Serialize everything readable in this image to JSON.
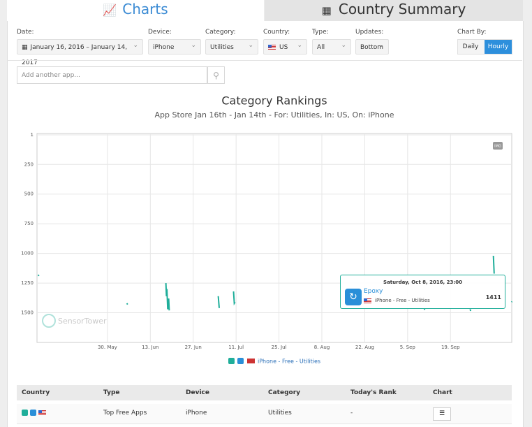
{
  "tabs": [
    "Charts",
    "Country Summary"
  ],
  "filters": {
    "date": {
      "label": "Date:",
      "value": "January 16, 2016 – January 14, 2017"
    },
    "device": {
      "label": "Device:",
      "value": "iPhone"
    },
    "category": {
      "label": "Category:",
      "value": "Utilities"
    },
    "country": {
      "label": "Country:",
      "value": "US"
    },
    "type": {
      "label": "Type:",
      "value": "All"
    },
    "updates": {
      "label": "Updates:",
      "value": "Bottom"
    },
    "chart_by": {
      "label": "Chart By:",
      "options": [
        "Daily",
        "Hourly"
      ]
    }
  },
  "search_placeholder": "Add another app...",
  "chart_data": {
    "type": "line",
    "title": "Category Rankings",
    "subtitle": "App Store Jan 16th - Jan 14th - For: Utilities, In: US, On: iPhone",
    "x": [
      "2016-05-07T10:00",
      "2016-05-07T14:00",
      "2016-05-20T00:00",
      "2016-06-05T08:00",
      "2016-06-05T14:00",
      "2016-06-10T00:00",
      "2016-06-18T02:00",
      "2016-06-18T06:00",
      "2016-06-18T10:00",
      "2016-06-18T16:00",
      "2016-06-19T00:00",
      "2016-06-19T04:00",
      "2016-06-25T00:00",
      "2016-07-05T04:00",
      "2016-07-05T12:00",
      "2016-07-08T00:00",
      "2016-07-10T04:00",
      "2016-07-10T10:00",
      "2016-07-10T16:00",
      "2016-07-20T00:00",
      "2016-09-10T10:00",
      "2016-09-10T14:00",
      "2016-09-18T00:00",
      "2016-09-25T10:00",
      "2016-09-25T14:00",
      "2016-09-28T00:00",
      "2016-10-03T00:00",
      "2016-10-03T06:00",
      "2016-10-05T00:00",
      "2016-10-08T23:00",
      "2016-10-09T02:00"
    ],
    "series": [
      {
        "name": "iPhone - Free - Utilities",
        "color": "#1fae9a",
        "values": [
          1180,
          1190,
          null,
          1420,
          1430,
          null,
          1250,
          1360,
          1300,
          1470,
          1380,
          1480,
          null,
          1360,
          1460,
          null,
          1320,
          1420,
          1410,
          null,
          1460,
          1475,
          null,
          1470,
          1485,
          null,
          1020,
          1170,
          null,
          1411,
          1405
        ]
      }
    ],
    "xlim": [
      "2016-05-07",
      "2016-10-09"
    ],
    "xticks": [
      {
        "value": "2016-05-30",
        "label": "30. May"
      },
      {
        "value": "2016-06-13",
        "label": "13. Jun"
      },
      {
        "value": "2016-06-27",
        "label": "27. Jun"
      },
      {
        "value": "2016-07-11",
        "label": "11. Jul"
      },
      {
        "value": "2016-07-25",
        "label": "25. Jul"
      },
      {
        "value": "2016-08-08",
        "label": "8. Aug"
      },
      {
        "value": "2016-08-22",
        "label": "22. Aug"
      },
      {
        "value": "2016-09-05",
        "label": "5. Sep"
      },
      {
        "value": "2016-09-19",
        "label": "19. Sep"
      }
    ],
    "ylim": [
      1,
      1750
    ],
    "yticks": [
      1,
      250,
      500,
      750,
      1000,
      1250,
      1500
    ],
    "y_reversed": true,
    "grid": true
  },
  "tooltip": {
    "date": "Saturday, Oct 8, 2016, 23:00",
    "app": "Epoxy",
    "detail": "iPhone - Free - Utilities",
    "rank": 1411
  },
  "watermark": "SensorTower",
  "export_button": "IMG",
  "table": {
    "headers": [
      "Country",
      "Type",
      "Device",
      "Category",
      "Today's Rank",
      "Chart"
    ],
    "rows": [
      {
        "type": "Top Free Apps",
        "device": "iPhone",
        "category": "Utilities",
        "rank": "-"
      }
    ]
  }
}
